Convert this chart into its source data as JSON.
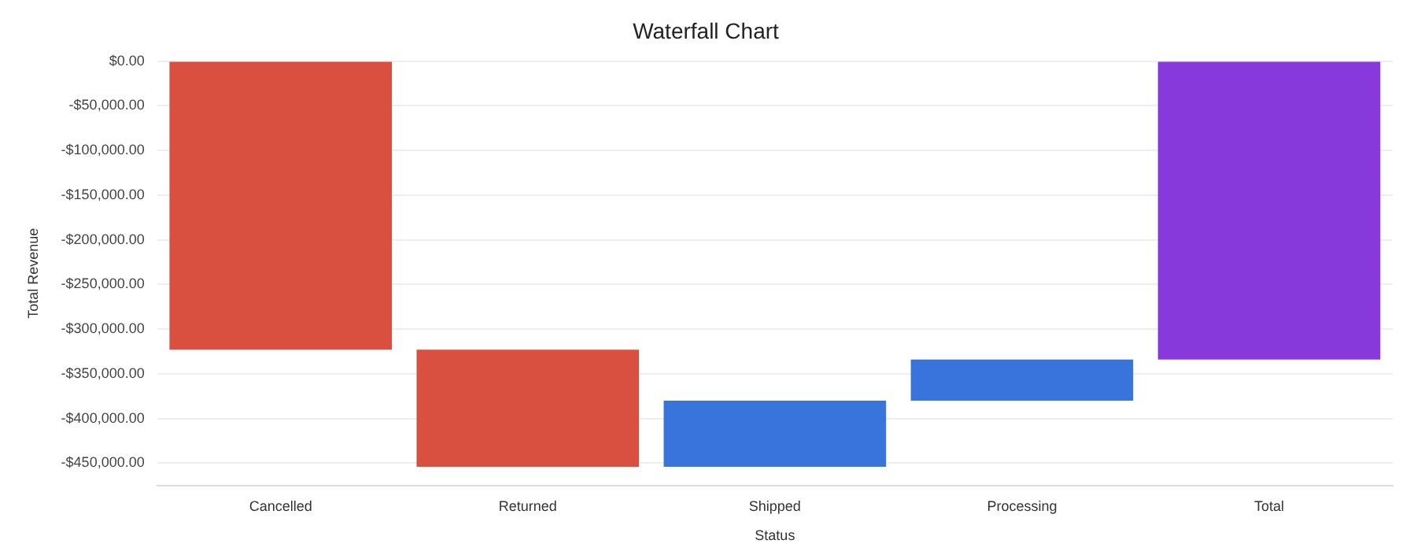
{
  "chart_data": {
    "type": "bar",
    "title": "Waterfall Chart",
    "xlabel": "Status",
    "ylabel": "Total Revenue",
    "categories": [
      "Cancelled",
      "Returned",
      "Shipped",
      "Processing",
      "Total"
    ],
    "values": [
      -323000,
      -131000,
      74000,
      46000,
      -334000
    ],
    "base": [
      0,
      -323000,
      -454000,
      -380000,
      0
    ],
    "colors": [
      "#d95040",
      "#d95040",
      "#3874dc",
      "#3874dc",
      "#8839dc"
    ],
    "ylim": [
      -475000,
      0
    ],
    "yticks": [
      {
        "value": 0,
        "label": "$0.00"
      },
      {
        "value": -50000,
        "label": "-$50,000.00"
      },
      {
        "value": -100000,
        "label": "-$100,000.00"
      },
      {
        "value": -150000,
        "label": "-$150,000.00"
      },
      {
        "value": -200000,
        "label": "-$200,000.00"
      },
      {
        "value": -250000,
        "label": "-$250,000.00"
      },
      {
        "value": -300000,
        "label": "-$300,000.00"
      },
      {
        "value": -350000,
        "label": "-$350,000.00"
      },
      {
        "value": -400000,
        "label": "-$400,000.00"
      },
      {
        "value": -450000,
        "label": "-$450,000.00"
      }
    ],
    "grid": "y"
  }
}
